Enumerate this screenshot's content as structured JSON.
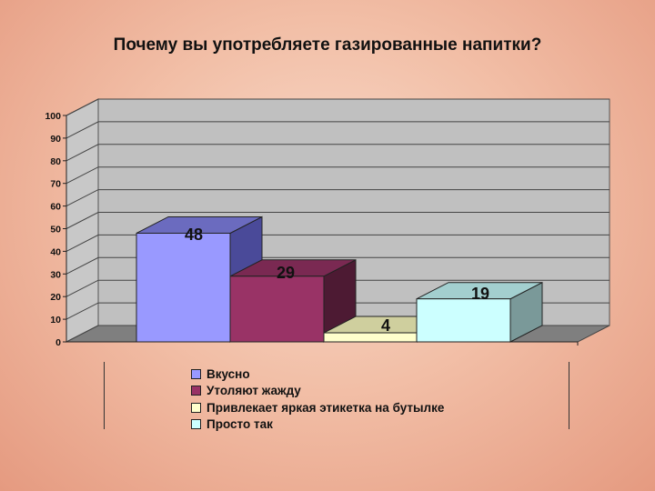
{
  "chart_data": {
    "type": "bar",
    "title": "Почему вы употребляете газированные напитки?",
    "categories": [
      "Вкусно",
      "Утоляют жажду",
      "Привлекает яркая этикетка на бутылке",
      "Просто так"
    ],
    "values": [
      48,
      29,
      4,
      19
    ],
    "data_labels": [
      "48",
      "29",
      "4",
      "19"
    ],
    "ylim": [
      0,
      100
    ],
    "yticks": [
      "0",
      "10",
      "20",
      "30",
      "40",
      "50",
      "60",
      "70",
      "80",
      "90",
      "100"
    ],
    "grid": true,
    "three_d": true,
    "legend_position": "bottom",
    "legend": [
      {
        "label": "Вкусно",
        "color": "#9999ff"
      },
      {
        "label": "Утоляют жажду",
        "color": "#993366"
      },
      {
        "label": "Привлекает яркая этикетка на бутылке",
        "color": "#ffffcc"
      },
      {
        "label": "Просто так",
        "color": "#ccffff"
      }
    ]
  }
}
